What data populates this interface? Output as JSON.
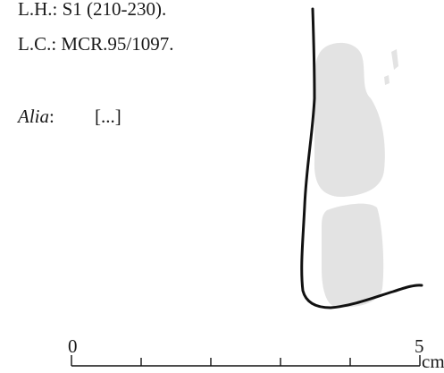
{
  "catalog": {
    "lh_line": "L.H.: S1 (210-230).",
    "lc_line": "L.C.: MCR.95/1097.",
    "alia_label": "Alia",
    "alia_colon": ":",
    "alia_value": "[...]"
  },
  "scale": {
    "start_label": "0",
    "end_label": "5",
    "unit_label": "cm",
    "max_cm": 5
  },
  "colors": {
    "outline": "#111111",
    "residue_fill": "#e3e3e3",
    "text": "#1a1a1a"
  }
}
